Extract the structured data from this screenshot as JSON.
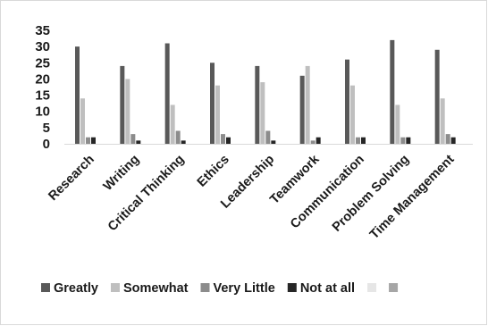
{
  "chart_data": {
    "type": "bar",
    "categories": [
      "Research",
      "Writing",
      "Critical Thinking",
      "Ethics",
      "Leadership",
      "Teamwork",
      "Communication",
      "Problem Solving",
      "Time Management"
    ],
    "series": [
      {
        "name": "Greatly",
        "values": [
          30,
          24,
          31,
          25,
          24,
          21,
          26,
          32,
          29
        ],
        "color": "#595959"
      },
      {
        "name": "Somewhat",
        "values": [
          14,
          20,
          12,
          18,
          19,
          24,
          18,
          12,
          14
        ],
        "color": "#bfbfbf"
      },
      {
        "name": "Very Little",
        "values": [
          2,
          3,
          4,
          3,
          4,
          1,
          2,
          2,
          3
        ],
        "color": "#8c8c8c"
      },
      {
        "name": "Not at all",
        "values": [
          2,
          1,
          1,
          2,
          1,
          2,
          2,
          2,
          2
        ],
        "color": "#262626"
      }
    ],
    "extra_legend_swatches": [
      "#e6e6e6",
      "#a6a6a6"
    ],
    "y_ticks": [
      "0",
      "5",
      "10",
      "15",
      "20",
      "25",
      "30",
      "35"
    ],
    "ylim": [
      0,
      35
    ],
    "grid": false,
    "legend_position": "bottom"
  }
}
